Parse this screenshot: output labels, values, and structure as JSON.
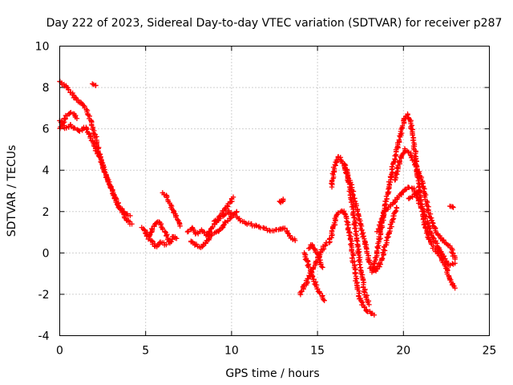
{
  "chart_data": {
    "type": "scatter",
    "title": "Day 222 of 2023, Sidereal Day-to-day VTEC variation (SDTVAR) for receiver p287",
    "xlabel": "GPS time / hours",
    "ylabel": "SDTVAR / TECUs",
    "xlim": [
      0,
      25
    ],
    "ylim": [
      -4,
      10
    ],
    "xticks": [
      0,
      5,
      10,
      15,
      20,
      25
    ],
    "yticks": [
      -4,
      -2,
      0,
      2,
      4,
      6,
      8,
      10
    ],
    "xtick_labels": [
      "0",
      "5",
      "10",
      "15",
      "20",
      "25"
    ],
    "ytick_labels": [
      "-4",
      "-2",
      "0",
      "2",
      "4",
      "6",
      "8",
      "10"
    ],
    "grid": true,
    "marker": "+",
    "color": "#ff0000",
    "series": [
      {
        "name": "track-1",
        "x": [
          0.0,
          0.3,
          0.6,
          0.9,
          1.2,
          1.5,
          1.8,
          2.1,
          2.3,
          2.6,
          2.9,
          3.2,
          3.5,
          3.8,
          4.1
        ],
        "y": [
          8.3,
          8.1,
          7.8,
          7.5,
          7.3,
          7.0,
          6.4,
          5.6,
          4.8,
          4.0,
          3.3,
          2.7,
          2.2,
          1.9,
          1.8
        ]
      },
      {
        "name": "track-2",
        "x": [
          0.0,
          0.3,
          0.6,
          0.9,
          1.2,
          1.5,
          1.8,
          2.1,
          2.4,
          2.7,
          3.0,
          3.3,
          3.6,
          3.9,
          4.2
        ],
        "y": [
          6.4,
          6.0,
          6.2,
          6.0,
          5.9,
          6.1,
          5.6,
          5.0,
          4.5,
          3.8,
          3.1,
          2.5,
          2.0,
          1.6,
          1.4
        ]
      },
      {
        "name": "track-3",
        "x": [
          0.0,
          0.2,
          0.4,
          0.7,
          1.0
        ],
        "y": [
          6.0,
          6.3,
          6.6,
          6.8,
          6.5
        ]
      },
      {
        "name": "track-4",
        "x": [
          1.9,
          2.1
        ],
        "y": [
          8.2,
          8.1
        ]
      },
      {
        "name": "track-5",
        "x": [
          4.8,
          5.0,
          5.2,
          5.4,
          5.6,
          5.8,
          6.0,
          6.2,
          6.4,
          6.6,
          6.8
        ],
        "y": [
          1.2,
          1.0,
          0.8,
          1.2,
          1.4,
          1.5,
          1.2,
          0.9,
          0.5,
          0.8,
          0.7
        ]
      },
      {
        "name": "track-6",
        "x": [
          5.0,
          5.3,
          5.6,
          5.9,
          6.2
        ],
        "y": [
          0.9,
          0.6,
          0.3,
          0.5,
          0.4
        ]
      },
      {
        "name": "track-7",
        "x": [
          6.0,
          6.2,
          6.4,
          6.6,
          6.8,
          7.0
        ],
        "y": [
          2.9,
          2.7,
          2.4,
          2.1,
          1.7,
          1.3
        ]
      },
      {
        "name": "track-8",
        "x": [
          7.4,
          7.7,
          8.0,
          8.3,
          8.6,
          8.9,
          9.2,
          9.5,
          9.8,
          10.1
        ],
        "y": [
          1.0,
          1.2,
          0.9,
          1.1,
          0.8,
          1.3,
          1.6,
          2.0,
          2.3,
          2.7
        ]
      },
      {
        "name": "track-9",
        "x": [
          7.6,
          7.9,
          8.2,
          8.5,
          8.8,
          9.1,
          9.4,
          9.7,
          10.0,
          10.3
        ],
        "y": [
          0.6,
          0.4,
          0.3,
          0.5,
          0.8,
          1.0,
          1.2,
          1.5,
          1.8,
          2.0
        ]
      },
      {
        "name": "track-10",
        "x": [
          9.0,
          9.4,
          9.8,
          10.2,
          10.6,
          11.0,
          11.4,
          11.8,
          12.2,
          12.6,
          13.0
        ],
        "y": [
          1.5,
          1.7,
          2.0,
          1.8,
          1.5,
          1.4,
          1.3,
          1.2,
          1.1,
          1.1,
          1.2
        ]
      },
      {
        "name": "track-11",
        "x": [
          12.8,
          12.9,
          13.0
        ],
        "y": [
          2.5,
          2.4,
          2.6
        ]
      },
      {
        "name": "track-12",
        "x": [
          13.1,
          13.3,
          13.5,
          13.7
        ],
        "y": [
          1.2,
          0.9,
          0.7,
          0.6
        ]
      },
      {
        "name": "track-13",
        "x": [
          14.2,
          14.4,
          14.6,
          14.8,
          15.0,
          15.2,
          15.4
        ],
        "y": [
          0.0,
          -0.4,
          -0.9,
          -1.3,
          -1.7,
          -2.0,
          -2.3
        ]
      },
      {
        "name": "track-14",
        "x": [
          14.0,
          14.3,
          14.6,
          14.9,
          15.2,
          15.5
        ],
        "y": [
          -2.0,
          -1.5,
          -1.0,
          -0.5,
          0.0,
          0.5
        ]
      },
      {
        "name": "track-15",
        "x": [
          14.5,
          14.7,
          14.9,
          15.1,
          15.3
        ],
        "y": [
          0.2,
          0.4,
          0.1,
          -0.3,
          -0.7
        ]
      },
      {
        "name": "track-16",
        "x": [
          15.7,
          15.9,
          16.1,
          16.3,
          16.5,
          16.7,
          16.9,
          17.1,
          17.3,
          17.5,
          17.7,
          17.9,
          18.1,
          18.3
        ],
        "y": [
          0.5,
          1.2,
          1.8,
          2.0,
          2.0,
          1.7,
          0.8,
          -0.5,
          -1.6,
          -2.3,
          -2.6,
          -2.8,
          -2.9,
          -3.0
        ]
      },
      {
        "name": "track-17",
        "x": [
          15.8,
          16.0,
          16.2,
          16.4,
          16.6,
          16.8,
          17.0,
          17.2,
          17.4,
          17.6,
          17.8,
          18.0
        ],
        "y": [
          3.2,
          4.2,
          4.7,
          4.5,
          4.2,
          3.5,
          2.5,
          1.2,
          0.0,
          -1.2,
          -2.0,
          -2.5
        ]
      },
      {
        "name": "track-18",
        "x": [
          16.6,
          16.9,
          17.2,
          17.5,
          17.8,
          18.1,
          18.4,
          18.7,
          19.0,
          19.3,
          19.6
        ],
        "y": [
          4.2,
          3.4,
          2.4,
          1.4,
          0.3,
          -0.7,
          -0.9,
          -0.4,
          0.5,
          1.4,
          2.2
        ]
      },
      {
        "name": "track-19",
        "x": [
          18.2,
          18.5,
          18.8,
          19.1,
          19.4,
          19.7,
          20.0,
          20.2,
          20.4,
          20.6,
          20.8,
          21.0,
          21.2,
          21.4,
          21.6,
          21.8,
          22.0,
          22.2,
          22.4,
          22.6,
          22.8,
          23.0
        ],
        "y": [
          -0.9,
          0.2,
          1.6,
          3.0,
          4.2,
          5.3,
          6.3,
          6.7,
          6.4,
          5.4,
          4.0,
          2.6,
          1.5,
          0.9,
          0.5,
          0.2,
          0.0,
          -0.2,
          -0.6,
          -1.0,
          -1.4,
          -1.7
        ]
      },
      {
        "name": "track-20",
        "x": [
          18.5,
          18.8,
          19.1,
          19.4,
          19.7,
          20.0,
          20.3,
          20.6,
          20.9,
          21.2,
          21.5,
          21.8,
          22.1,
          22.4,
          22.7,
          23.0
        ],
        "y": [
          1.0,
          1.8,
          2.2,
          2.4,
          2.7,
          3.0,
          3.2,
          3.1,
          2.5,
          1.9,
          1.2,
          0.6,
          0.2,
          -0.3,
          -0.6,
          -0.5
        ]
      },
      {
        "name": "track-21",
        "x": [
          19.5,
          19.8,
          20.1,
          20.4,
          20.7,
          21.0,
          21.3,
          21.6,
          21.9,
          22.2,
          22.5,
          22.8,
          23.0
        ],
        "y": [
          3.5,
          4.5,
          5.0,
          4.8,
          4.3,
          3.7,
          2.6,
          1.6,
          1.0,
          0.7,
          0.5,
          0.2,
          -0.3
        ]
      },
      {
        "name": "track-22",
        "x": [
          20.3,
          20.6,
          20.9
        ],
        "y": [
          2.6,
          2.8,
          3.0
        ]
      },
      {
        "name": "track-23",
        "x": [
          22.7,
          22.9
        ],
        "y": [
          2.3,
          2.2
        ]
      }
    ]
  }
}
